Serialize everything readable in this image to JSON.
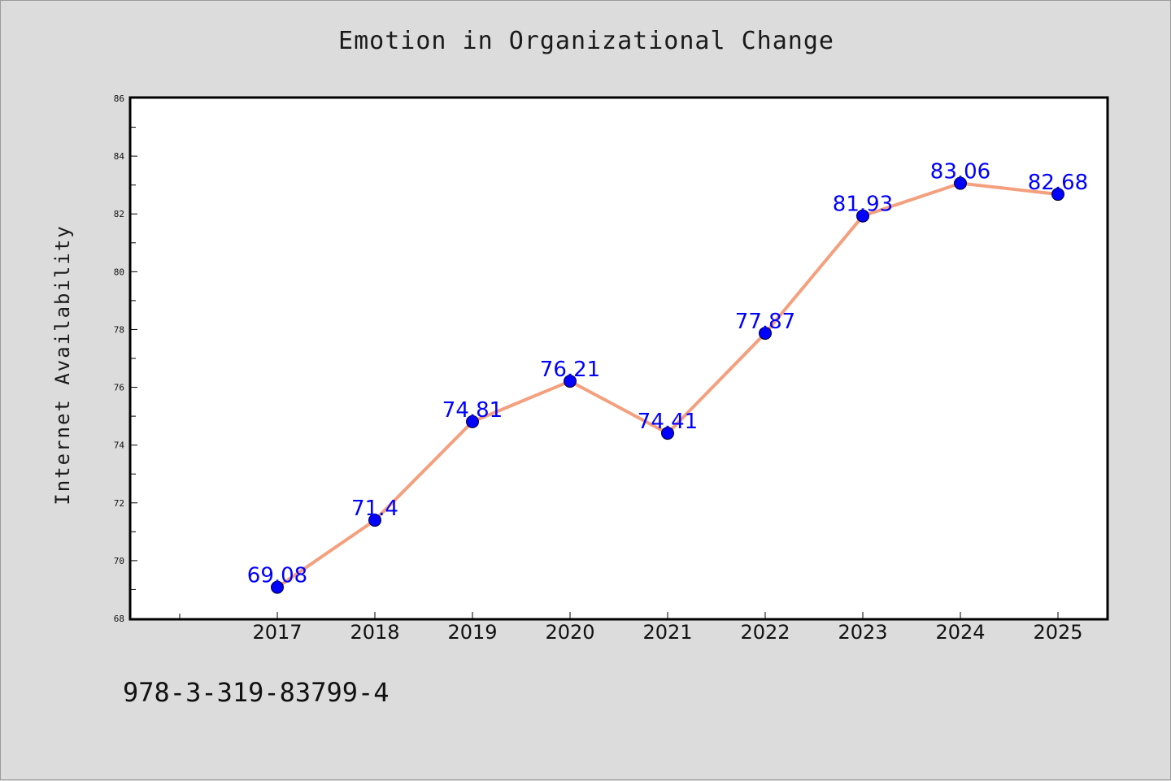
{
  "colors": {
    "background": "#dcdcdc",
    "plot_background": "#ffffff",
    "line": "#f4a07e",
    "marker": "#0000ff",
    "data_label": "#0000ff",
    "axis": "#000000"
  },
  "footer": {
    "code": "978-3-319-83799-4"
  },
  "chart_data": {
    "type": "line",
    "title": "Emotion in Organizational Change",
    "xlabel": "",
    "ylabel": "Internet Availability",
    "x": [
      "2017",
      "2018",
      "2019",
      "2020",
      "2021",
      "2022",
      "2023",
      "2024",
      "2025"
    ],
    "series": [
      {
        "values": [
          69.08,
          71.4,
          74.81,
          76.21,
          74.41,
          77.87,
          81.93,
          83.06,
          82.68
        ],
        "labels": [
          "69.08",
          "71.4",
          "74.81",
          "76.21",
          "74.41",
          "77.87",
          "81.93",
          "83.06",
          "82.68"
        ]
      }
    ],
    "ylim": [
      68,
      86
    ],
    "yticks": [
      "68",
      "70",
      "72",
      "74",
      "76",
      "78",
      "80",
      "82",
      "84",
      "86"
    ],
    "grid": false,
    "legend": "none"
  }
}
